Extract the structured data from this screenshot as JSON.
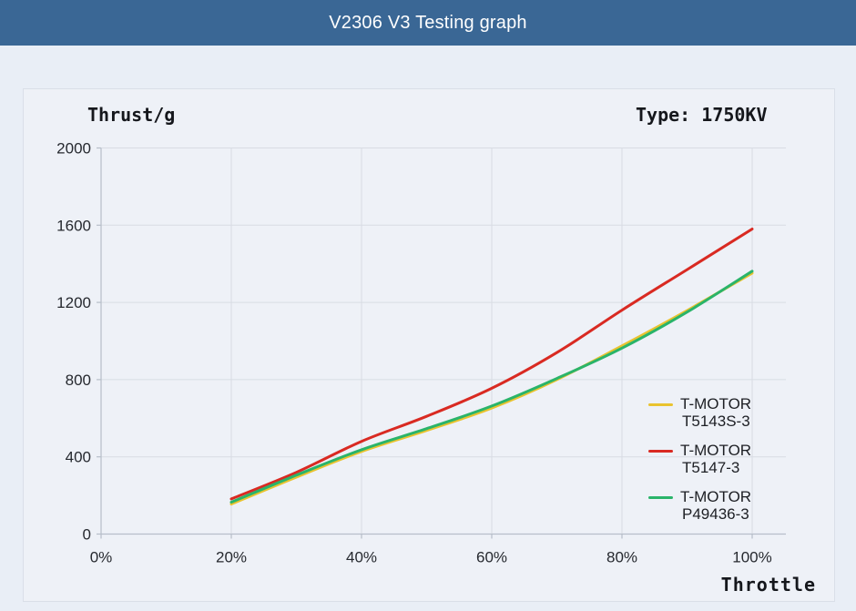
{
  "header": {
    "title": "V2306 V3 Testing graph",
    "bg_color": "#3a6795"
  },
  "panel": {
    "y_axis_title": "Thrust/g",
    "type_label": "Type: 1750KV",
    "x_axis_title": "Throttle"
  },
  "legend": {
    "position": "inside-right",
    "entries": [
      {
        "line1": "T-MOTOR",
        "line2": "T5143S-3",
        "color": "#e9c32f"
      },
      {
        "line1": "T-MOTOR",
        "line2": "T5147-3",
        "color": "#d92a22"
      },
      {
        "line1": "T-MOTOR",
        "line2": "P49436-3",
        "color": "#2ab46a"
      }
    ]
  },
  "chart_data": {
    "type": "line",
    "title": "V2306 V3 Testing graph",
    "xlabel": "Throttle",
    "ylabel": "Thrust/g",
    "x": [
      20,
      30,
      40,
      50,
      60,
      70,
      80,
      90,
      100
    ],
    "x_unit": "%",
    "series": [
      {
        "name": "T-MOTOR T5143S-3",
        "color": "#e9c32f",
        "values": [
          155,
          295,
          428,
          537,
          653,
          800,
          975,
          1158,
          1352
        ]
      },
      {
        "name": "T-MOTOR T5147-3",
        "color": "#d92a22",
        "values": [
          182,
          320,
          480,
          610,
          755,
          940,
          1160,
          1370,
          1580
        ]
      },
      {
        "name": "T-MOTOR P49436-3",
        "color": "#2ab46a",
        "values": [
          165,
          305,
          437,
          546,
          663,
          806,
          963,
          1150,
          1362
        ]
      }
    ],
    "xlim": [
      0,
      100
    ],
    "ylim": [
      0,
      2000
    ],
    "xticks": {
      "values": [
        0,
        20,
        40,
        60,
        80,
        100
      ],
      "labels": [
        "0%",
        "20%",
        "40%",
        "60%",
        "80%",
        "100%"
      ]
    },
    "yticks": {
      "values": [
        0,
        400,
        800,
        1200,
        1600,
        2000
      ],
      "labels": [
        "0",
        "400",
        "800",
        "1200",
        "1600",
        "2000"
      ]
    },
    "grid": true,
    "legend_position": "inside-right"
  },
  "colors": {
    "page_bg": "#e9eef6",
    "card_bg": "#eef1f7",
    "card_border": "#dadfe8",
    "gridline": "#d8dce3",
    "axis": "#b7bec9",
    "label_text": "#26292f"
  }
}
